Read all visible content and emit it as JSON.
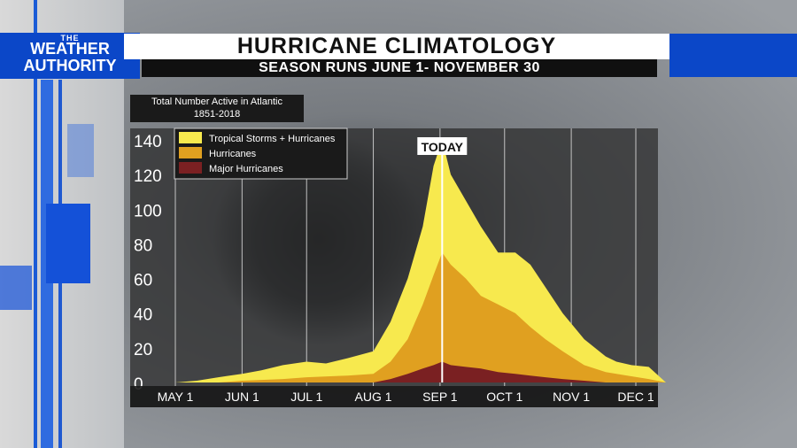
{
  "header": {
    "brand_small": "THE",
    "brand_line1": "WEATHER",
    "brand_line2": "AUTHORITY",
    "title": "HURRICANE CLIMATOLOGY",
    "subtitle": "SEASON RUNS JUNE 1- NOVEMBER 30"
  },
  "note": {
    "line1": "Total Number Active in Atlantic",
    "line2": "1851-2018"
  },
  "colors": {
    "tropical": "#f7e94e",
    "hurricanes": "#e0a020",
    "major": "#7a2022",
    "panel": "#2a2a2a",
    "brand_blue": "#0b47c8"
  },
  "chart_data": {
    "type": "area",
    "title": "HURRICANE CLIMATOLOGY",
    "subtitle": "SEASON RUNS JUNE 1- NOVEMBER 30",
    "x_ticks": [
      "MAY 1",
      "JUN 1",
      "JUL 1",
      "AUG 1",
      "SEP 1",
      "OCT 1",
      "NOV 1",
      "DEC 1"
    ],
    "y_ticks": [
      0,
      20,
      40,
      60,
      80,
      100,
      120,
      140
    ],
    "ylim": [
      0,
      140
    ],
    "grid": "vertical",
    "legend_placement": "top-left",
    "annotation": "TODAY",
    "annotation_day": 124,
    "series": [
      {
        "name": "Tropical Storms + Hurricanes",
        "days": [
          0,
          10,
          20,
          31,
          40,
          50,
          61,
          70,
          80,
          92,
          100,
          108,
          115,
          120,
          124,
          128,
          135,
          142,
          150,
          158,
          165,
          172,
          180,
          190,
          200,
          205,
          212,
          220,
          228
        ],
        "values": [
          0,
          1,
          3,
          5,
          7,
          10,
          12,
          11,
          14,
          18,
          35,
          60,
          90,
          125,
          140,
          120,
          105,
          90,
          75,
          75,
          68,
          55,
          40,
          25,
          15,
          12,
          10,
          9,
          0
        ]
      },
      {
        "name": "Hurricanes",
        "days": [
          0,
          20,
          31,
          50,
          61,
          80,
          92,
          100,
          108,
          115,
          120,
          124,
          128,
          135,
          142,
          150,
          158,
          165,
          172,
          180,
          190,
          200,
          210,
          220,
          228
        ],
        "values": [
          0,
          0,
          1,
          2,
          3,
          4,
          5,
          12,
          25,
          45,
          62,
          75,
          68,
          60,
          50,
          45,
          40,
          32,
          25,
          18,
          10,
          6,
          4,
          2,
          0
        ]
      },
      {
        "name": "Major Hurricanes",
        "days": [
          0,
          61,
          92,
          100,
          108,
          115,
          120,
          124,
          128,
          135,
          142,
          150,
          158,
          165,
          172,
          180,
          190,
          200,
          228
        ],
        "values": [
          0,
          0,
          0,
          2,
          5,
          8,
          10,
          12,
          10,
          9,
          8,
          6,
          5,
          4,
          3,
          2,
          1,
          0,
          0
        ]
      }
    ]
  }
}
